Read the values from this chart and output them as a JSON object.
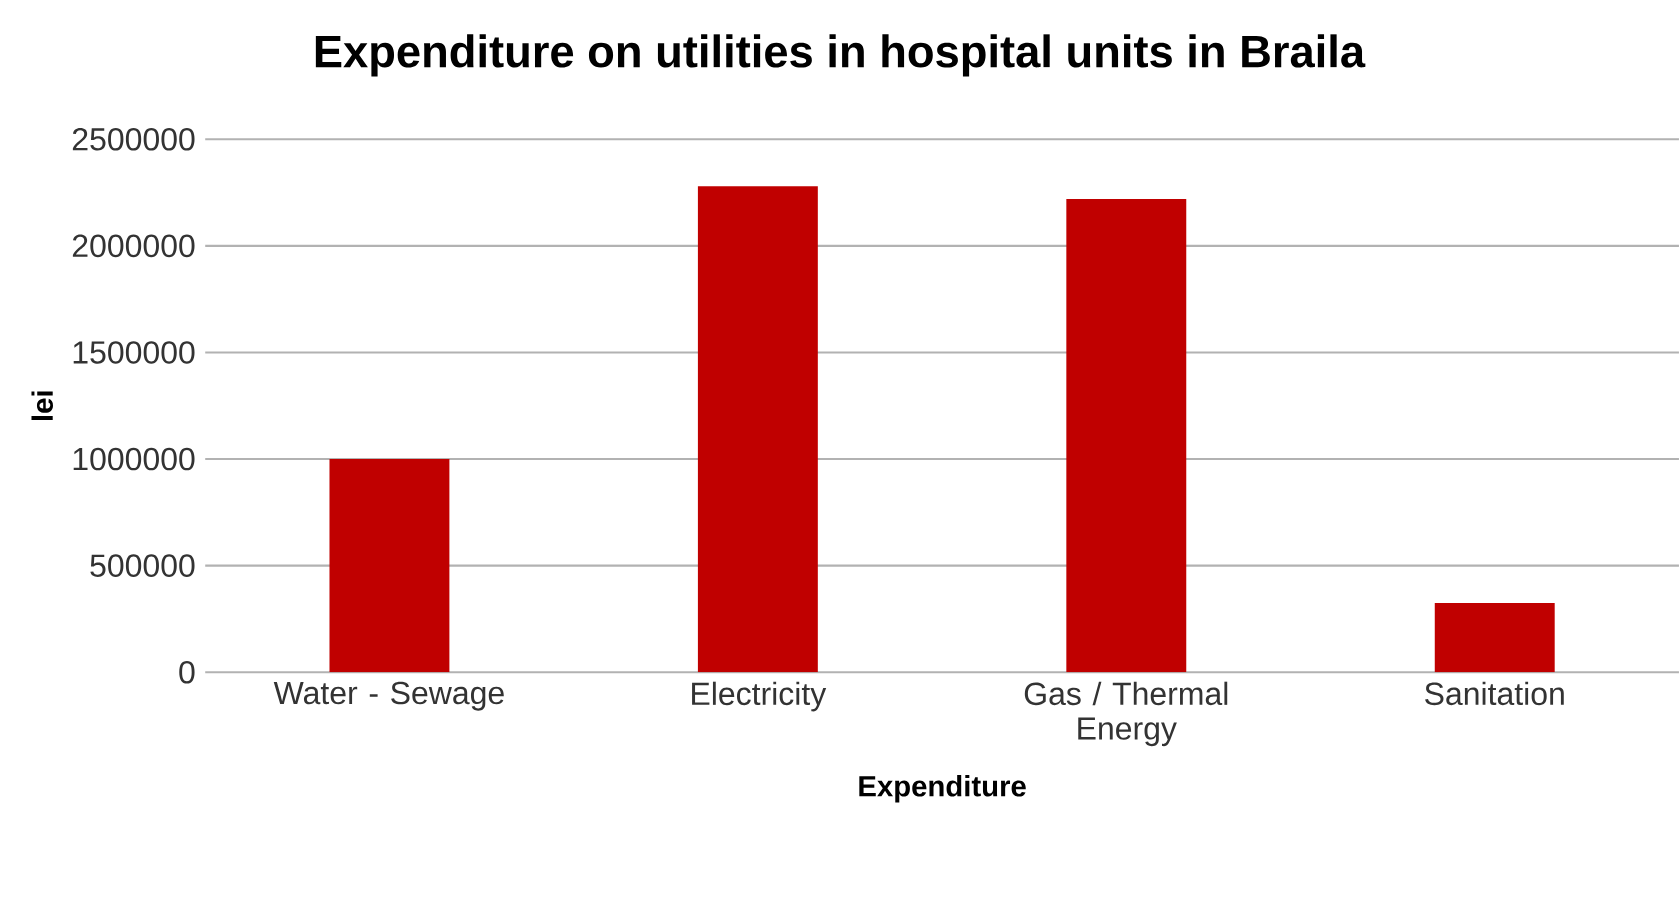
{
  "chart_data": {
    "type": "bar",
    "title": "Expenditure on utilities in hospital units in Braila",
    "xlabel": "Expenditure",
    "ylabel": "lei",
    "categories": [
      "Water - Sewage",
      "Electricity",
      "Gas / Thermal Energy",
      "Sanitation"
    ],
    "values": [
      1000000,
      2280000,
      2220000,
      325000
    ],
    "color": "#c00000",
    "ylim": [
      0,
      2500000
    ],
    "yticks": [
      0,
      500000,
      1000000,
      1500000,
      2000000,
      2500000
    ],
    "grid": "y"
  }
}
